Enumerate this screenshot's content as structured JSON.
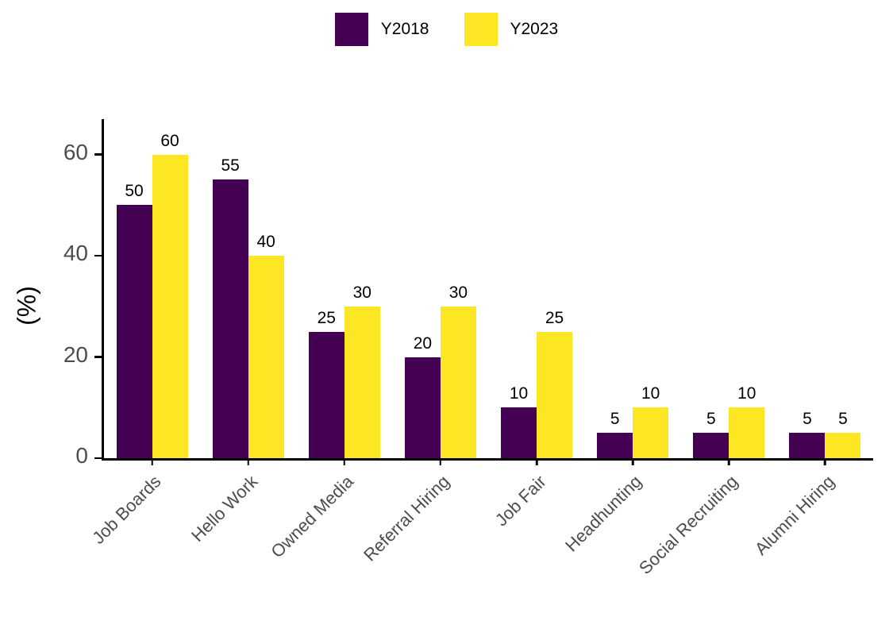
{
  "chart_data": {
    "type": "bar",
    "title": "",
    "xlabel": "",
    "ylabel": "(%)",
    "categories": [
      "Job Boards",
      "Hello Work",
      "Owned Media",
      "Referral Hiring",
      "Job Fair",
      "Headhunting",
      "Social Recruiting",
      "Alumni Hiring"
    ],
    "series": [
      {
        "name": "Y2018",
        "color": "#440154",
        "values": [
          50,
          55,
          25,
          20,
          10,
          5,
          5,
          5
        ]
      },
      {
        "name": "Y2023",
        "color": "#FDE725",
        "values": [
          60,
          40,
          30,
          30,
          25,
          10,
          10,
          5
        ]
      }
    ],
    "yticks": [
      0,
      20,
      40,
      60
    ],
    "ylim": [
      0,
      67
    ],
    "grid": false,
    "bar_value_labels": true,
    "legend_position": "top-center",
    "x_tick_label_rotation_deg": 45
  }
}
